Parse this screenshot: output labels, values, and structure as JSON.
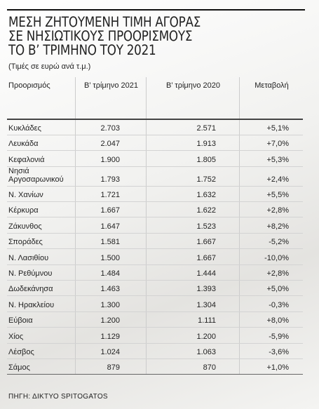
{
  "header": {
    "title_lines": [
      "ΜΕΣΗ ΖΗΤΟΥΜΕΝΗ ΤΙΜΗ ΑΓΟΡΑΣ",
      "ΣΕ ΝΗΣΙΩΤΙΚΟΥΣ ΠΡΟΟΡΙΣΜΟΥΣ",
      "ΤΟ Β’ ΤΡΙΜΗΝΟ ΤΟΥ 2021"
    ],
    "subtitle": "(Τιμές σε ευρώ ανά τ.μ.)"
  },
  "table": {
    "columns": [
      "Προορισμός",
      "Β’ τρίμηνο 2021",
      "Β’ τρίμηνο 2020",
      "Μεταβολή"
    ],
    "rows": [
      [
        "Κυκλάδες",
        "2.703",
        "2.571",
        "+5,1%"
      ],
      [
        "Λευκάδα",
        "2.047",
        "1.913",
        "+7,0%"
      ],
      [
        "Κεφαλονιά",
        "1.900",
        "1.805",
        "+5,3%"
      ],
      [
        "Νησιά Αργοσαρωνικού",
        "1.793",
        "1.752",
        "+2,4%"
      ],
      [
        "Ν. Χανίων",
        "1.721",
        "1.632",
        "+5,5%"
      ],
      [
        "Κέρκυρα",
        "1.667",
        "1.622",
        "+2,8%"
      ],
      [
        "Ζάκυνθος",
        "1.647",
        "1.523",
        "+8,2%"
      ],
      [
        "Σποράδες",
        "1.581",
        "1.667",
        "-5,2%"
      ],
      [
        "Ν. Λασιθίου",
        "1.500",
        "1.667",
        "-10,0%"
      ],
      [
        "Ν. Ρεθύμνου",
        "1.484",
        "1.444",
        "+2,8%"
      ],
      [
        "Δωδεκάνησα",
        "1.463",
        "1.393",
        "+5,0%"
      ],
      [
        "Ν. Ηρακλείου",
        "1.300",
        "1.304",
        "-0,3%"
      ],
      [
        "Εύβοια",
        "1.200",
        "1.111",
        "+8,0%"
      ],
      [
        "Χίος",
        "1.129",
        "1.200",
        "-5,9%"
      ],
      [
        "Λέσβος",
        "1.024",
        "1.063",
        "-3,6%"
      ],
      [
        "Σάμος",
        "879",
        "870",
        "+1,0%"
      ]
    ]
  },
  "source": "ΠΗΓΗ: ΔΙΚΤΥΟ SPITOGATOS"
}
